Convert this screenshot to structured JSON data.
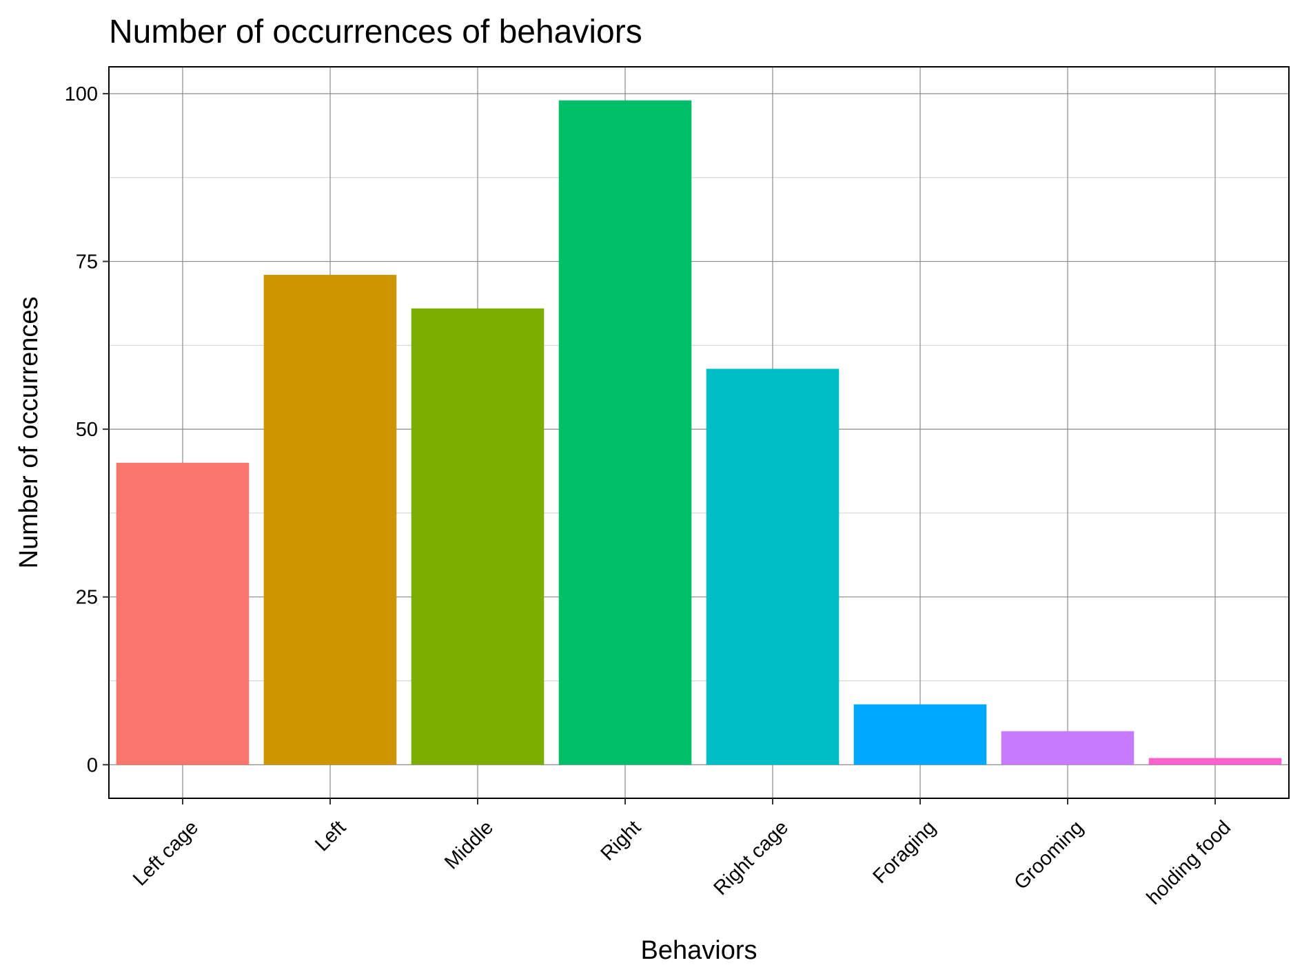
{
  "chart_data": {
    "type": "bar",
    "title": "Number of occurrences of behaviors",
    "xlabel": "Behaviors",
    "ylabel": "Number of occurrences",
    "categories": [
      "Left cage",
      "Left",
      "Middle",
      "Right",
      "Right cage",
      "Foraging",
      "Grooming",
      "holding food"
    ],
    "values": [
      45,
      73,
      68,
      99,
      59,
      9,
      5,
      1
    ],
    "colors": [
      "#F8766D",
      "#CD9600",
      "#7CAE00",
      "#00BE67",
      "#00BFC4",
      "#00A9FF",
      "#C77CFF",
      "#FF61CC"
    ],
    "ylim": [
      -5,
      104
    ],
    "yticks": [
      0,
      25,
      50,
      75,
      100
    ],
    "grid": true,
    "legend": "none"
  }
}
